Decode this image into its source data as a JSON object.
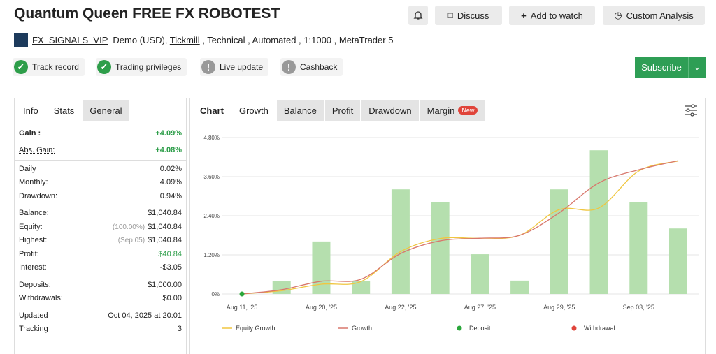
{
  "header": {
    "title": "Quantum Queen FREE FX ROBOTEST",
    "actions": [
      "Discuss",
      "Add to watch",
      "Custom Analysis"
    ]
  },
  "account": {
    "name": "FX_SIGNALS_VIP",
    "type": "Demo (USD),",
    "broker": "Tickmill",
    "details": ", Technical , Automated , 1:1000 , MetaTrader 5"
  },
  "badges": [
    "Track record",
    "Trading privileges",
    "Live update",
    "Cashback"
  ],
  "subscribe": "Subscribe",
  "stats": {
    "tabs": [
      "Info",
      "Stats",
      "General"
    ],
    "groups": [
      [
        {
          "label": "Gain :",
          "value": "+4.09%",
          "color": "#2e9e4a"
        },
        {
          "label": "Abs. Gain:",
          "value": "+4.08%",
          "color": "#2e9e4a"
        }
      ],
      [
        {
          "label": "Daily",
          "value": "0.02%"
        },
        {
          "label": "Monthly:",
          "value": "4.09%"
        },
        {
          "label": "Drawdown:",
          "value": "0.94%"
        }
      ],
      [
        {
          "label": "Balance:",
          "value": "$1,040.84"
        },
        {
          "label": "Equity:",
          "note": "(100.00%)",
          "value": "$1,040.84"
        },
        {
          "label": "Highest:",
          "note": "(Sep 05)",
          "value": "$1,040.84"
        },
        {
          "label": "Profit:",
          "value": "$40.84",
          "color": "#2e9e4a"
        },
        {
          "label": "Interest:",
          "value": "-$3.05"
        }
      ],
      [
        {
          "label": "Deposits:",
          "value": "$1,000.00"
        },
        {
          "label": "Withdrawals:",
          "value": "$0.00"
        }
      ],
      [
        {
          "label": "Updated",
          "value": "Oct 04, 2025 at 20:01"
        },
        {
          "label": "Tracking",
          "value": "3"
        }
      ]
    ]
  },
  "chart_tabs": {
    "tabs": [
      "Chart",
      "Growth",
      "Balance",
      "Profit",
      "Drawdown",
      "Margin"
    ],
    "new": "New"
  },
  "chart_data": {
    "type": "combo",
    "categories": [
      "Aug 11, '25",
      null,
      "Aug 20, '25",
      null,
      "Aug 22, '25",
      null,
      "Aug 27, '25",
      null,
      "Aug 29, '25",
      null,
      "Sep 03, '25",
      null
    ],
    "bars": {
      "color": "#b5dfae",
      "values": [
        null,
        0.39,
        1.61,
        0.39,
        3.21,
        2.81,
        1.22,
        0.41,
        3.21,
        4.41,
        2.81,
        2.01
      ]
    },
    "series": [
      {
        "name": "Equity Growth",
        "color": "#f0c640",
        "kind": "line",
        "values": [
          0,
          0.1,
          0.3,
          0.38,
          1.3,
          1.7,
          1.71,
          1.8,
          2.59,
          2.64,
          3.77,
          4.08
        ]
      },
      {
        "name": "Growth",
        "color": "#d8776c",
        "kind": "line",
        "values": [
          0,
          0.13,
          0.39,
          0.45,
          1.24,
          1.63,
          1.71,
          1.8,
          2.49,
          3.41,
          3.81,
          4.09
        ]
      },
      {
        "name": "Deposit",
        "color": "#2aa73b",
        "kind": "point",
        "values": [
          0,
          null,
          null,
          null,
          null,
          null,
          null,
          null,
          null,
          null,
          null,
          null
        ]
      },
      {
        "name": "Withdrawal",
        "color": "#e0443a",
        "kind": "point",
        "values": [
          null,
          null,
          null,
          null,
          null,
          null,
          null,
          null,
          null,
          null,
          null,
          null
        ]
      }
    ],
    "ylim": [
      0,
      4.8
    ],
    "yticks": [
      {
        "value": 0,
        "label": "0%"
      },
      {
        "value": 1.2,
        "label": "1.20%"
      },
      {
        "value": 2.4,
        "label": "2.40%"
      },
      {
        "value": 3.6,
        "label": "3.60%"
      },
      {
        "value": 4.8,
        "label": "4.80%"
      }
    ],
    "grid": true
  }
}
